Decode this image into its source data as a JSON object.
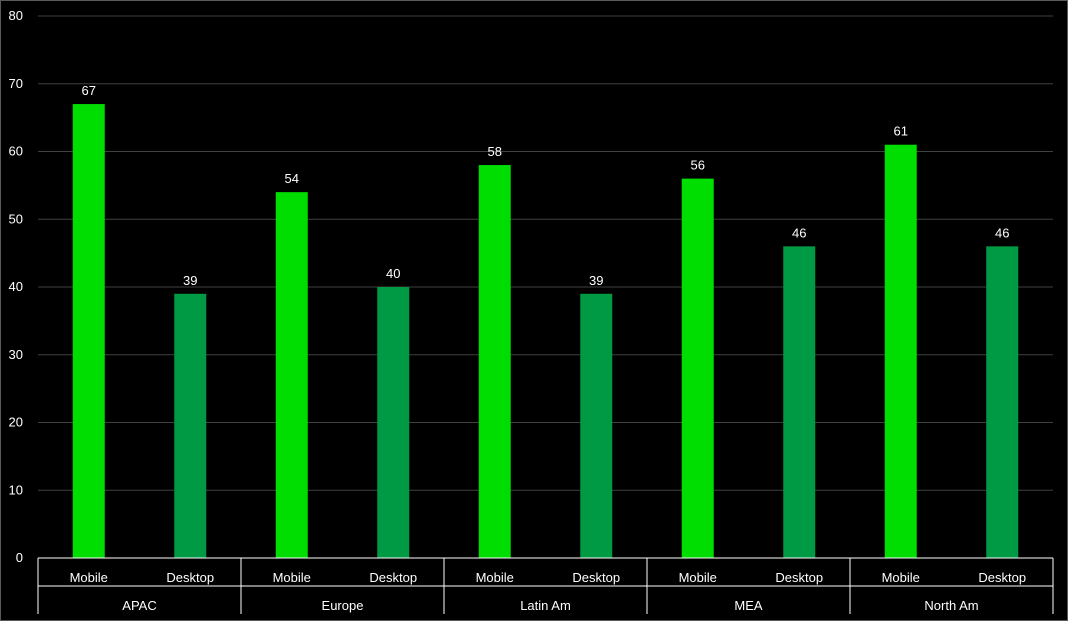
{
  "chart_data": {
    "type": "bar",
    "ylim": [
      0,
      80
    ],
    "ytick_step": 10,
    "grid": true,
    "data_labels": true,
    "groups": [
      {
        "name": "APAC",
        "bars": [
          {
            "label": "Mobile",
            "value": 67
          },
          {
            "label": "Desktop",
            "value": 39
          }
        ]
      },
      {
        "name": "Europe",
        "bars": [
          {
            "label": "Mobile",
            "value": 54
          },
          {
            "label": "Desktop",
            "value": 40
          }
        ]
      },
      {
        "name": "Latin Am",
        "bars": [
          {
            "label": "Mobile",
            "value": 58
          },
          {
            "label": "Desktop",
            "value": 39
          }
        ]
      },
      {
        "name": "MEA",
        "bars": [
          {
            "label": "Mobile",
            "value": 56
          },
          {
            "label": "Desktop",
            "value": 46
          }
        ]
      },
      {
        "name": "North Am",
        "bars": [
          {
            "label": "Mobile",
            "value": 61
          },
          {
            "label": "Desktop",
            "value": 46
          }
        ]
      }
    ],
    "colors": {
      "Mobile": "#00dd00",
      "Desktop": "#009944",
      "background": "#000000",
      "grid": "#404040",
      "axis": "#ffffff",
      "text": "#ffffff"
    }
  }
}
